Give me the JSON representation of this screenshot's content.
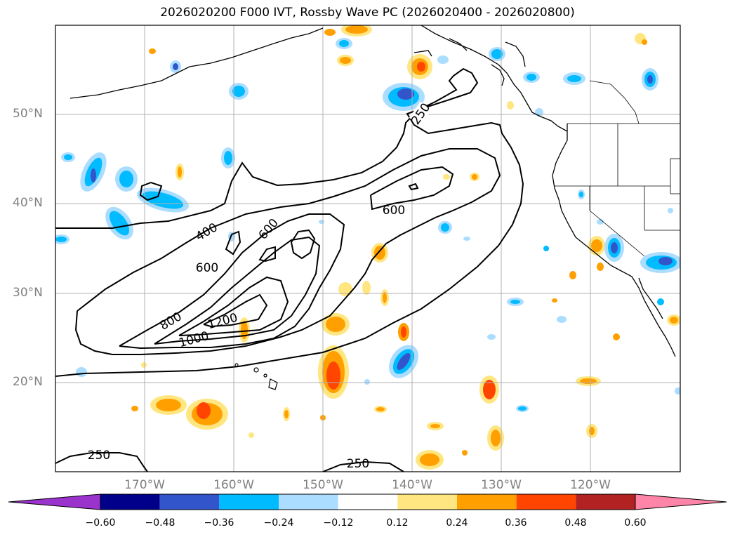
{
  "title": "2026020200 F000 IVT, Rossby Wave PC (2026020400 - 2026020800)",
  "lat_labels": [
    "50°N",
    "40°N",
    "30°N",
    "20°N"
  ],
  "lon_labels": [
    "170°W",
    "160°W",
    "150°W",
    "140°W",
    "130°W",
    "120°W"
  ],
  "contour_labels": {
    "c250_north": "250",
    "c400": "400",
    "c600_a": "600",
    "c600_b": "600",
    "c600_c": "600",
    "c800": "800",
    "c1000": "1000",
    "c1200": "1200",
    "c250_south_a": "250",
    "c250_south_b": "250"
  },
  "colorbar": {
    "ticks": [
      "−0.60",
      "−0.48",
      "−0.36",
      "−0.24",
      "−0.12",
      "0.12",
      "0.24",
      "0.36",
      "0.48",
      "0.60"
    ],
    "colors": [
      "#9933cc",
      "#00008b",
      "#3355cc",
      "#00bbff",
      "#aaddff",
      "#ffffff",
      "#ffe680",
      "#ffa000",
      "#ff4500",
      "#b22222",
      "#ff85a8"
    ]
  },
  "colors": {
    "grid": "#b0b0b0",
    "contour": "#000000",
    "label": "#808080"
  }
}
